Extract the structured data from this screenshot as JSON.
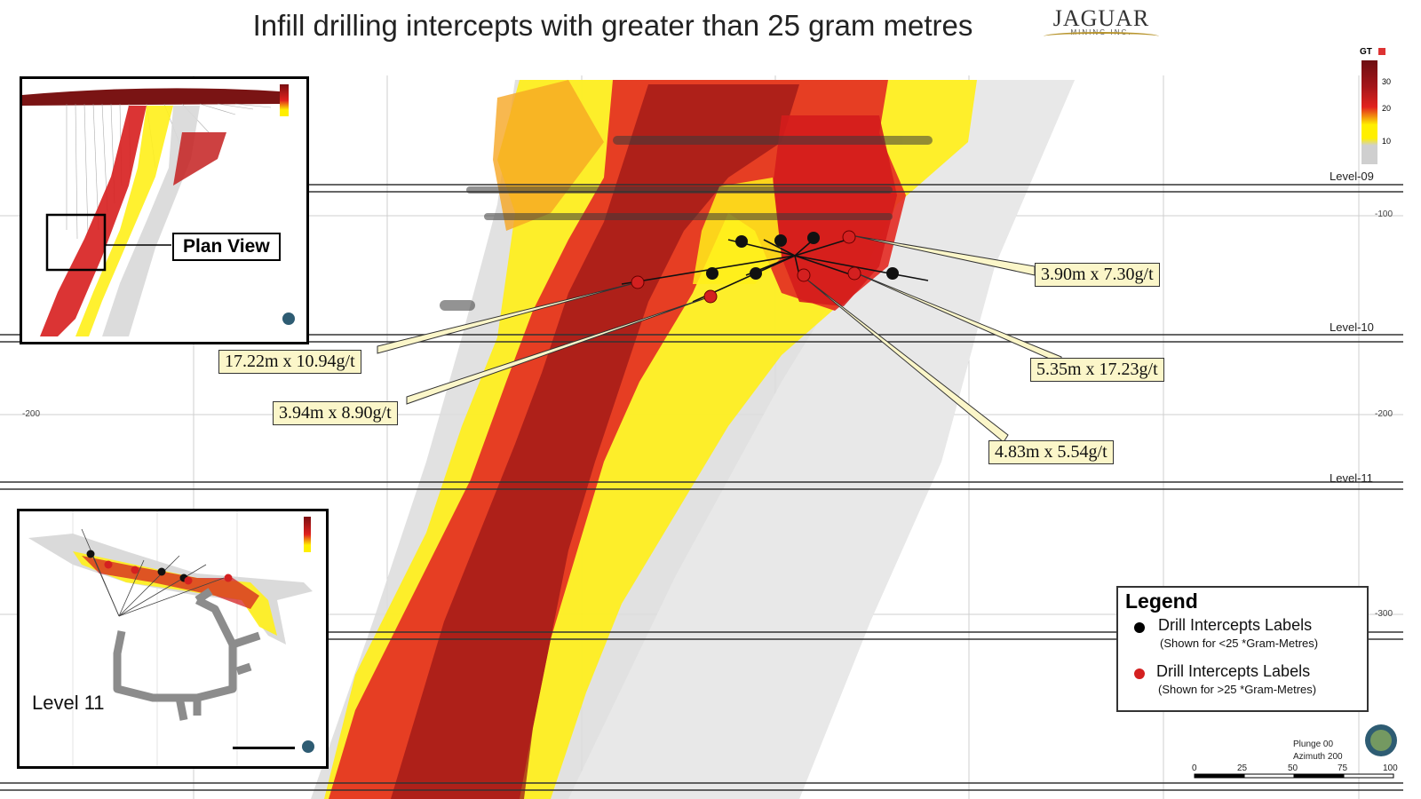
{
  "title": "Infill drilling intercepts with greater than 25 gram metres",
  "logo": {
    "brand": "JAGUAR",
    "sub": "MINING INC."
  },
  "levels": [
    "Level-09",
    "Level-10",
    "Level-11"
  ],
  "coords": {
    "c100": "-100",
    "c200_left": "-200",
    "c200_right": "-200",
    "c300": "-300"
  },
  "callouts": [
    {
      "text": "3.90m x 7.30g/t"
    },
    {
      "text": "17.22m x 10.94g/t"
    },
    {
      "text": "5.35m x 17.23g/t"
    },
    {
      "text": "3.94m x 8.90g/t"
    },
    {
      "text": "4.83m x 5.54g/t"
    }
  ],
  "inset_plan": {
    "label": "Plan View"
  },
  "inset_level": {
    "label": "Level 11"
  },
  "gt_legend": {
    "title": "GT",
    "ticks": [
      "30",
      "20",
      "10"
    ],
    "colors": [
      "#7a0f12",
      "#d31f1f",
      "#ffef00",
      "#cfcfcf"
    ]
  },
  "legend": {
    "title": "Legend",
    "items": [
      {
        "label": "Drill Intercepts Labels",
        "note": "(Shown for <25 *Gram-Metres)",
        "color": "#000000"
      },
      {
        "label": "Drill Intercepts Labels",
        "note": "(Shown for >25 *Gram-Metres)",
        "color": "#d42020"
      }
    ]
  },
  "view_info": {
    "plunge": "Plunge 00",
    "azimuth": "Azimuth 200"
  },
  "scale_bar": {
    "ticks": [
      "0",
      "25",
      "50",
      "75",
      "100"
    ]
  }
}
